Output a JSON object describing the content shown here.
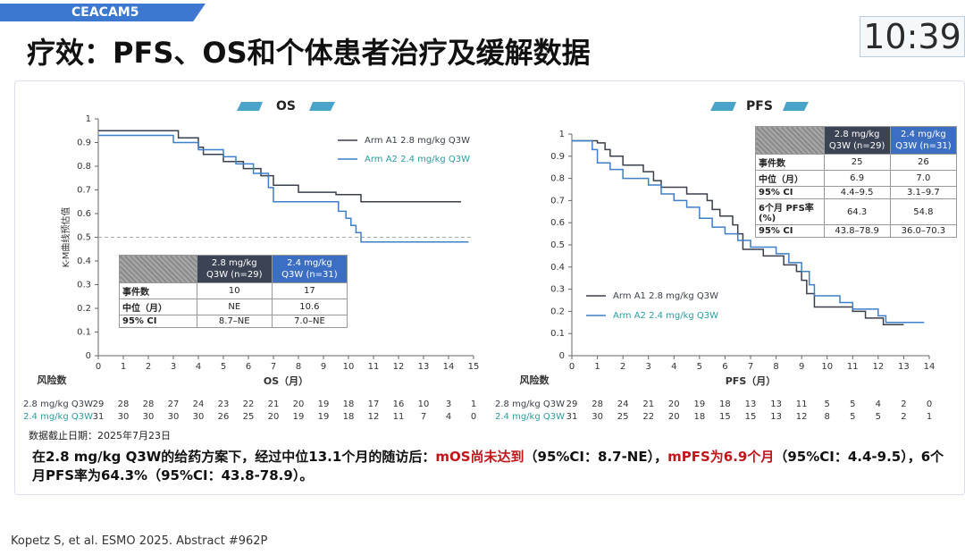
{
  "header": {
    "tag": "CEACAM5",
    "title": "疗效：PFS、OS和个体患者治疗及缓解数据",
    "clock": "10:39"
  },
  "chart_data": [
    {
      "type": "step",
      "title": "OS",
      "ylabel": "K-M曲线预估值",
      "xlabel": "OS（月）",
      "xlim": [
        0,
        15
      ],
      "ylim": [
        0,
        1
      ],
      "xticks": [
        0,
        1,
        2,
        3,
        4,
        5,
        6,
        7,
        8,
        9,
        10,
        11,
        12,
        13,
        14,
        15
      ],
      "yticks": [
        0,
        0.1,
        0.2,
        0.3,
        0.4,
        0.5,
        0.6,
        0.7,
        0.8,
        0.9,
        1
      ],
      "reference_line": 0.5,
      "legend": "upper right",
      "series": [
        {
          "name": "Arm A1 2.8 mg/kg Q3W",
          "color": "#3a3f4b",
          "label_color": "#3a3f4b",
          "x": [
            0,
            3,
            3.2,
            4,
            4.2,
            5,
            5.8,
            6.5,
            7,
            8,
            9.5,
            10.5,
            14.5
          ],
          "values": [
            0.95,
            0.95,
            0.92,
            0.88,
            0.85,
            0.82,
            0.79,
            0.76,
            0.72,
            0.69,
            0.68,
            0.65,
            0.65
          ]
        },
        {
          "name": "Arm A2 2.4 mg/kg Q3W",
          "color": "#3d7fc9",
          "label_color": "#2a9d9d",
          "x": [
            0,
            3,
            4,
            5,
            5.5,
            6.2,
            6.8,
            7,
            9.6,
            9.9,
            10.1,
            10.3,
            10.5,
            14.8
          ],
          "values": [
            0.93,
            0.9,
            0.87,
            0.84,
            0.81,
            0.77,
            0.71,
            0.65,
            0.61,
            0.58,
            0.55,
            0.52,
            0.48,
            0.48
          ]
        }
      ]
    },
    {
      "type": "step",
      "title": "PFS",
      "xlabel": "PFS（月）",
      "xlim": [
        0,
        14
      ],
      "ylim": [
        0,
        1
      ],
      "xticks": [
        0,
        1,
        2,
        3,
        4,
        5,
        6,
        7,
        8,
        9,
        10,
        11,
        12,
        13,
        14
      ],
      "yticks": [
        0,
        0.1,
        0.2,
        0.3,
        0.4,
        0.5,
        0.6,
        0.7,
        0.8,
        0.9,
        1
      ],
      "legend": "lower left",
      "series": [
        {
          "name": "Arm A1 2.8 mg/kg Q3W",
          "color": "#3a3f4b",
          "label_color": "#3a3f4b",
          "x": [
            0,
            1,
            1.3,
            1.5,
            2,
            2.8,
            3.2,
            3.5,
            4.5,
            5.3,
            5.5,
            5.8,
            6.3,
            6.5,
            6.7,
            7.5,
            8.3,
            8.8,
            9,
            9.2,
            9.5,
            11,
            11.5,
            12.2,
            13
          ],
          "values": [
            0.97,
            0.96,
            0.93,
            0.9,
            0.86,
            0.83,
            0.79,
            0.76,
            0.73,
            0.7,
            0.66,
            0.63,
            0.59,
            0.55,
            0.48,
            0.45,
            0.41,
            0.38,
            0.34,
            0.28,
            0.22,
            0.2,
            0.17,
            0.14,
            0.14
          ]
        },
        {
          "name": "Arm A2 2.4 mg/kg Q3W",
          "color": "#3d7fc9",
          "label_color": "#2a9d9d",
          "x": [
            0,
            0.8,
            1,
            1.5,
            2,
            3,
            3.5,
            4,
            4.5,
            5,
            5.5,
            6,
            6.5,
            7,
            8,
            8.5,
            9,
            9.3,
            9.5,
            10.5,
            11,
            12,
            12.3,
            13.8
          ],
          "values": [
            0.97,
            0.93,
            0.87,
            0.84,
            0.8,
            0.77,
            0.73,
            0.7,
            0.67,
            0.62,
            0.58,
            0.55,
            0.52,
            0.49,
            0.46,
            0.42,
            0.38,
            0.32,
            0.27,
            0.24,
            0.21,
            0.18,
            0.15,
            0.15
          ]
        }
      ]
    }
  ],
  "tables": [
    {
      "header": [
        [
          "2.8 mg/kg",
          "Q3W (n=29)"
        ],
        [
          "2.4 mg/kg",
          "Q3W (n=31)"
        ]
      ],
      "rows": [
        [
          "事件数",
          "10",
          "17"
        ],
        [
          "中位（月）",
          "NE",
          "10.6"
        ],
        [
          "95% CI",
          "8.7–NE",
          "7.0–NE"
        ]
      ]
    },
    {
      "header": [
        [
          "2.8 mg/kg",
          "Q3W (n=29)"
        ],
        [
          "2.4 mg/kg",
          "Q3W (n=31)"
        ]
      ],
      "rows": [
        [
          "事件数",
          "25",
          "26"
        ],
        [
          "中位（月）",
          "6.9",
          "7.0"
        ],
        [
          "95% CI",
          "4.4–9.5",
          "3.1–9.7"
        ],
        [
          "6个月 PFS率 (%)",
          "64.3",
          "54.8"
        ],
        [
          "95% CI",
          "43.8–78.9",
          "36.0–70.3"
        ]
      ]
    }
  ],
  "risk_tables": [
    {
      "title": "风险数",
      "rows": [
        {
          "label": "2.8 mg/kg Q3W",
          "values": [
            "29",
            "28",
            "28",
            "27",
            "24",
            "23",
            "22",
            "21",
            "20",
            "19",
            "18",
            "17",
            "16",
            "10",
            "3",
            "1"
          ]
        },
        {
          "label": "2.4 mg/kg Q3W",
          "values": [
            "31",
            "30",
            "30",
            "30",
            "30",
            "26",
            "25",
            "20",
            "19",
            "19",
            "18",
            "12",
            "11",
            "7",
            "4",
            "0"
          ]
        }
      ]
    },
    {
      "title": "风险数",
      "rows": [
        {
          "label": "2.8 mg/kg Q3W",
          "values": [
            "29",
            "28",
            "24",
            "21",
            "20",
            "19",
            "18",
            "13",
            "13",
            "11",
            "5",
            "5",
            "4",
            "2",
            "0"
          ]
        },
        {
          "label": "2.4 mg/kg Q3W",
          "values": [
            "31",
            "30",
            "25",
            "22",
            "20",
            "18",
            "15",
            "15",
            "13",
            "12",
            "8",
            "5",
            "5",
            "2",
            "1"
          ]
        }
      ]
    }
  ],
  "cutoff_note": "数据截止日期：2025年7月23日",
  "conclusion": [
    {
      "text": "在2.8 mg/kg Q3W的给药方案下，经过中位13.1个月的随访后：",
      "color": "#111"
    },
    {
      "text": "mOS尚未达到",
      "color": "#c0161c"
    },
    {
      "text": "（95%CI：8.7-NE），",
      "color": "#111"
    },
    {
      "text": "mPFS为6.9个月",
      "color": "#c0161c"
    },
    {
      "text": "（95%CI：4.4-9.5），6个月PFS率为64.3%（95%CI：43.8-78.9）。",
      "color": "#111"
    }
  ],
  "footnote": "Kopetz S, et al. ESMO 2025. Abstract #962P"
}
